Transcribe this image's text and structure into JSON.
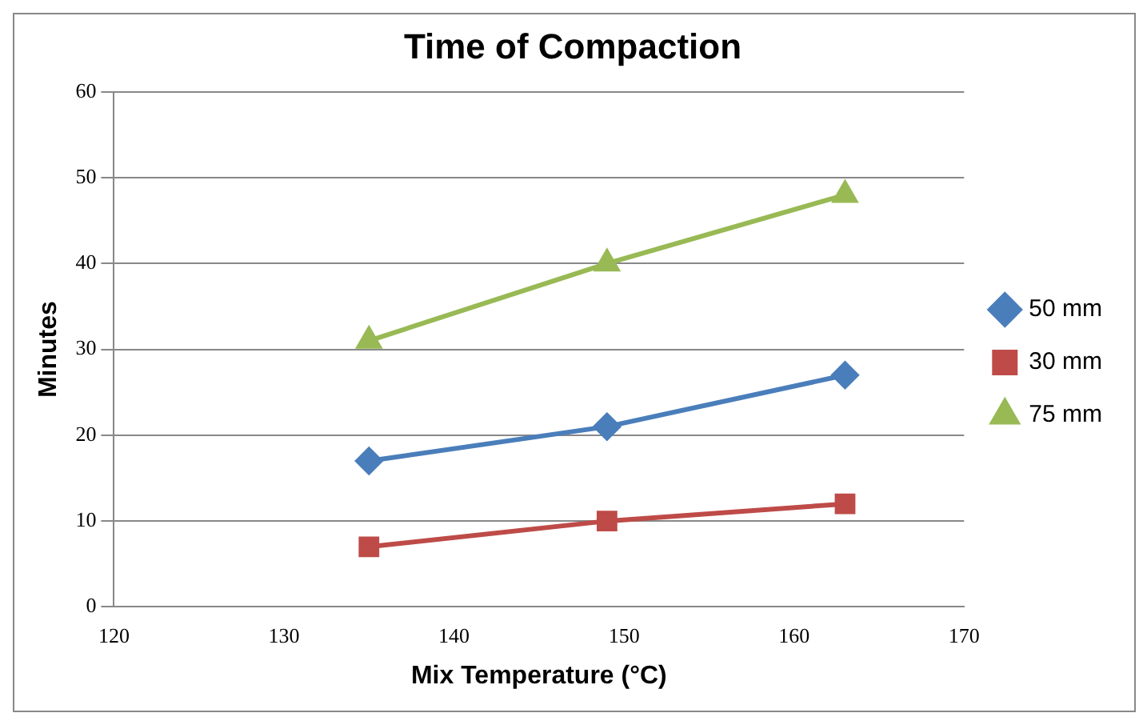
{
  "chart_data": {
    "type": "line",
    "title": "Time of Compaction",
    "xlabel": "Mix Temperature (°C)",
    "ylabel": "Minutes",
    "x": [
      135,
      149,
      163
    ],
    "series": [
      {
        "name": "50 mm",
        "color": "#4a7ebb",
        "values": [
          17,
          21,
          27
        ],
        "marker": "diamond"
      },
      {
        "name": "30 mm",
        "color": "#be4b48",
        "values": [
          7,
          10,
          12
        ],
        "marker": "square"
      },
      {
        "name": "75 mm",
        "color": "#98b954",
        "values": [
          31,
          40,
          48
        ],
        "marker": "triangle"
      }
    ],
    "xlim": [
      120,
      170
    ],
    "xticks": [
      120,
      130,
      140,
      150,
      160,
      170
    ],
    "ylim": [
      0,
      60
    ],
    "yticks": [
      0,
      10,
      20,
      30,
      40,
      50,
      60
    ],
    "grid": "y",
    "legend": "right",
    "line_style": "solid"
  }
}
